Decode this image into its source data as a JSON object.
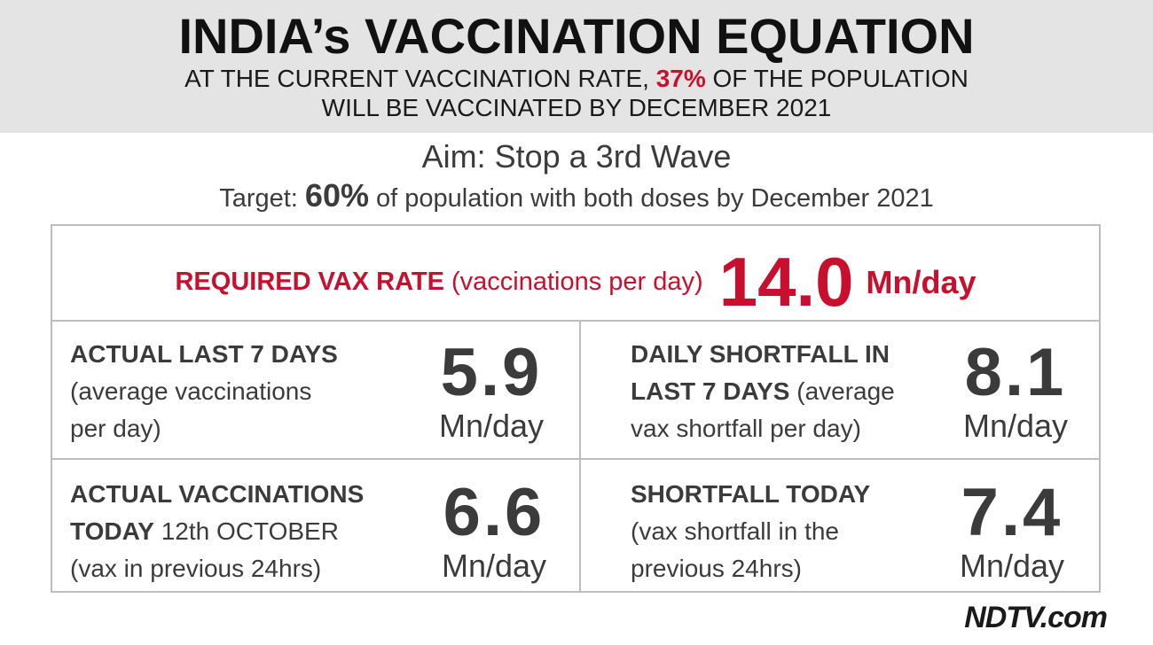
{
  "header": {
    "title": "INDIA’s VACCINATION EQUATION",
    "sub_line1_pre": "AT THE CURRENT VACCINATION RATE, ",
    "sub_line1_pct": "37%",
    "sub_line1_post": " OF THE POPULATION",
    "sub_line2": "WILL BE VACCINATED BY DECEMBER 2021"
  },
  "aim": "Aim: Stop a 3rd Wave",
  "target": {
    "pre": "Target: ",
    "pct": "60%",
    "post": " of population with both doses by December 2021"
  },
  "required": {
    "label": "REQUIRED VAX RATE",
    "note": " (vaccinations per day)",
    "value": "14.0",
    "unit": "Mn/day"
  },
  "cells": [
    {
      "label": "ACTUAL LAST 7 DAYS",
      "desc_line1": "(average vaccinations",
      "desc_line2": "per day)",
      "value": "5.9",
      "unit": "Mn/day"
    },
    {
      "label_line1": "DAILY SHORTFALL IN",
      "label_line2": "LAST 7 DAYS",
      "desc_inline": " (average",
      "desc_line2": "vax shortfall per day)",
      "value": "8.1",
      "unit": "Mn/day"
    },
    {
      "label_line1": "ACTUAL VACCINATIONS",
      "label_line2": "TODAY",
      "date": " 12th OCTOBER",
      "desc": "(vax in previous 24hrs)",
      "value": "6.6",
      "unit": "Mn/day"
    },
    {
      "label": "SHORTFALL TODAY",
      "desc_line1": "(vax shortfall in the",
      "desc_line2": "previous 24hrs)",
      "value": "7.4",
      "unit": "Mn/day"
    }
  ],
  "brand": "NDTV.com",
  "colors": {
    "accent_red": "#c8102e",
    "header_bg": "#e4e4e4",
    "border": "#bdbdbd",
    "text": "#3b3b3b"
  }
}
